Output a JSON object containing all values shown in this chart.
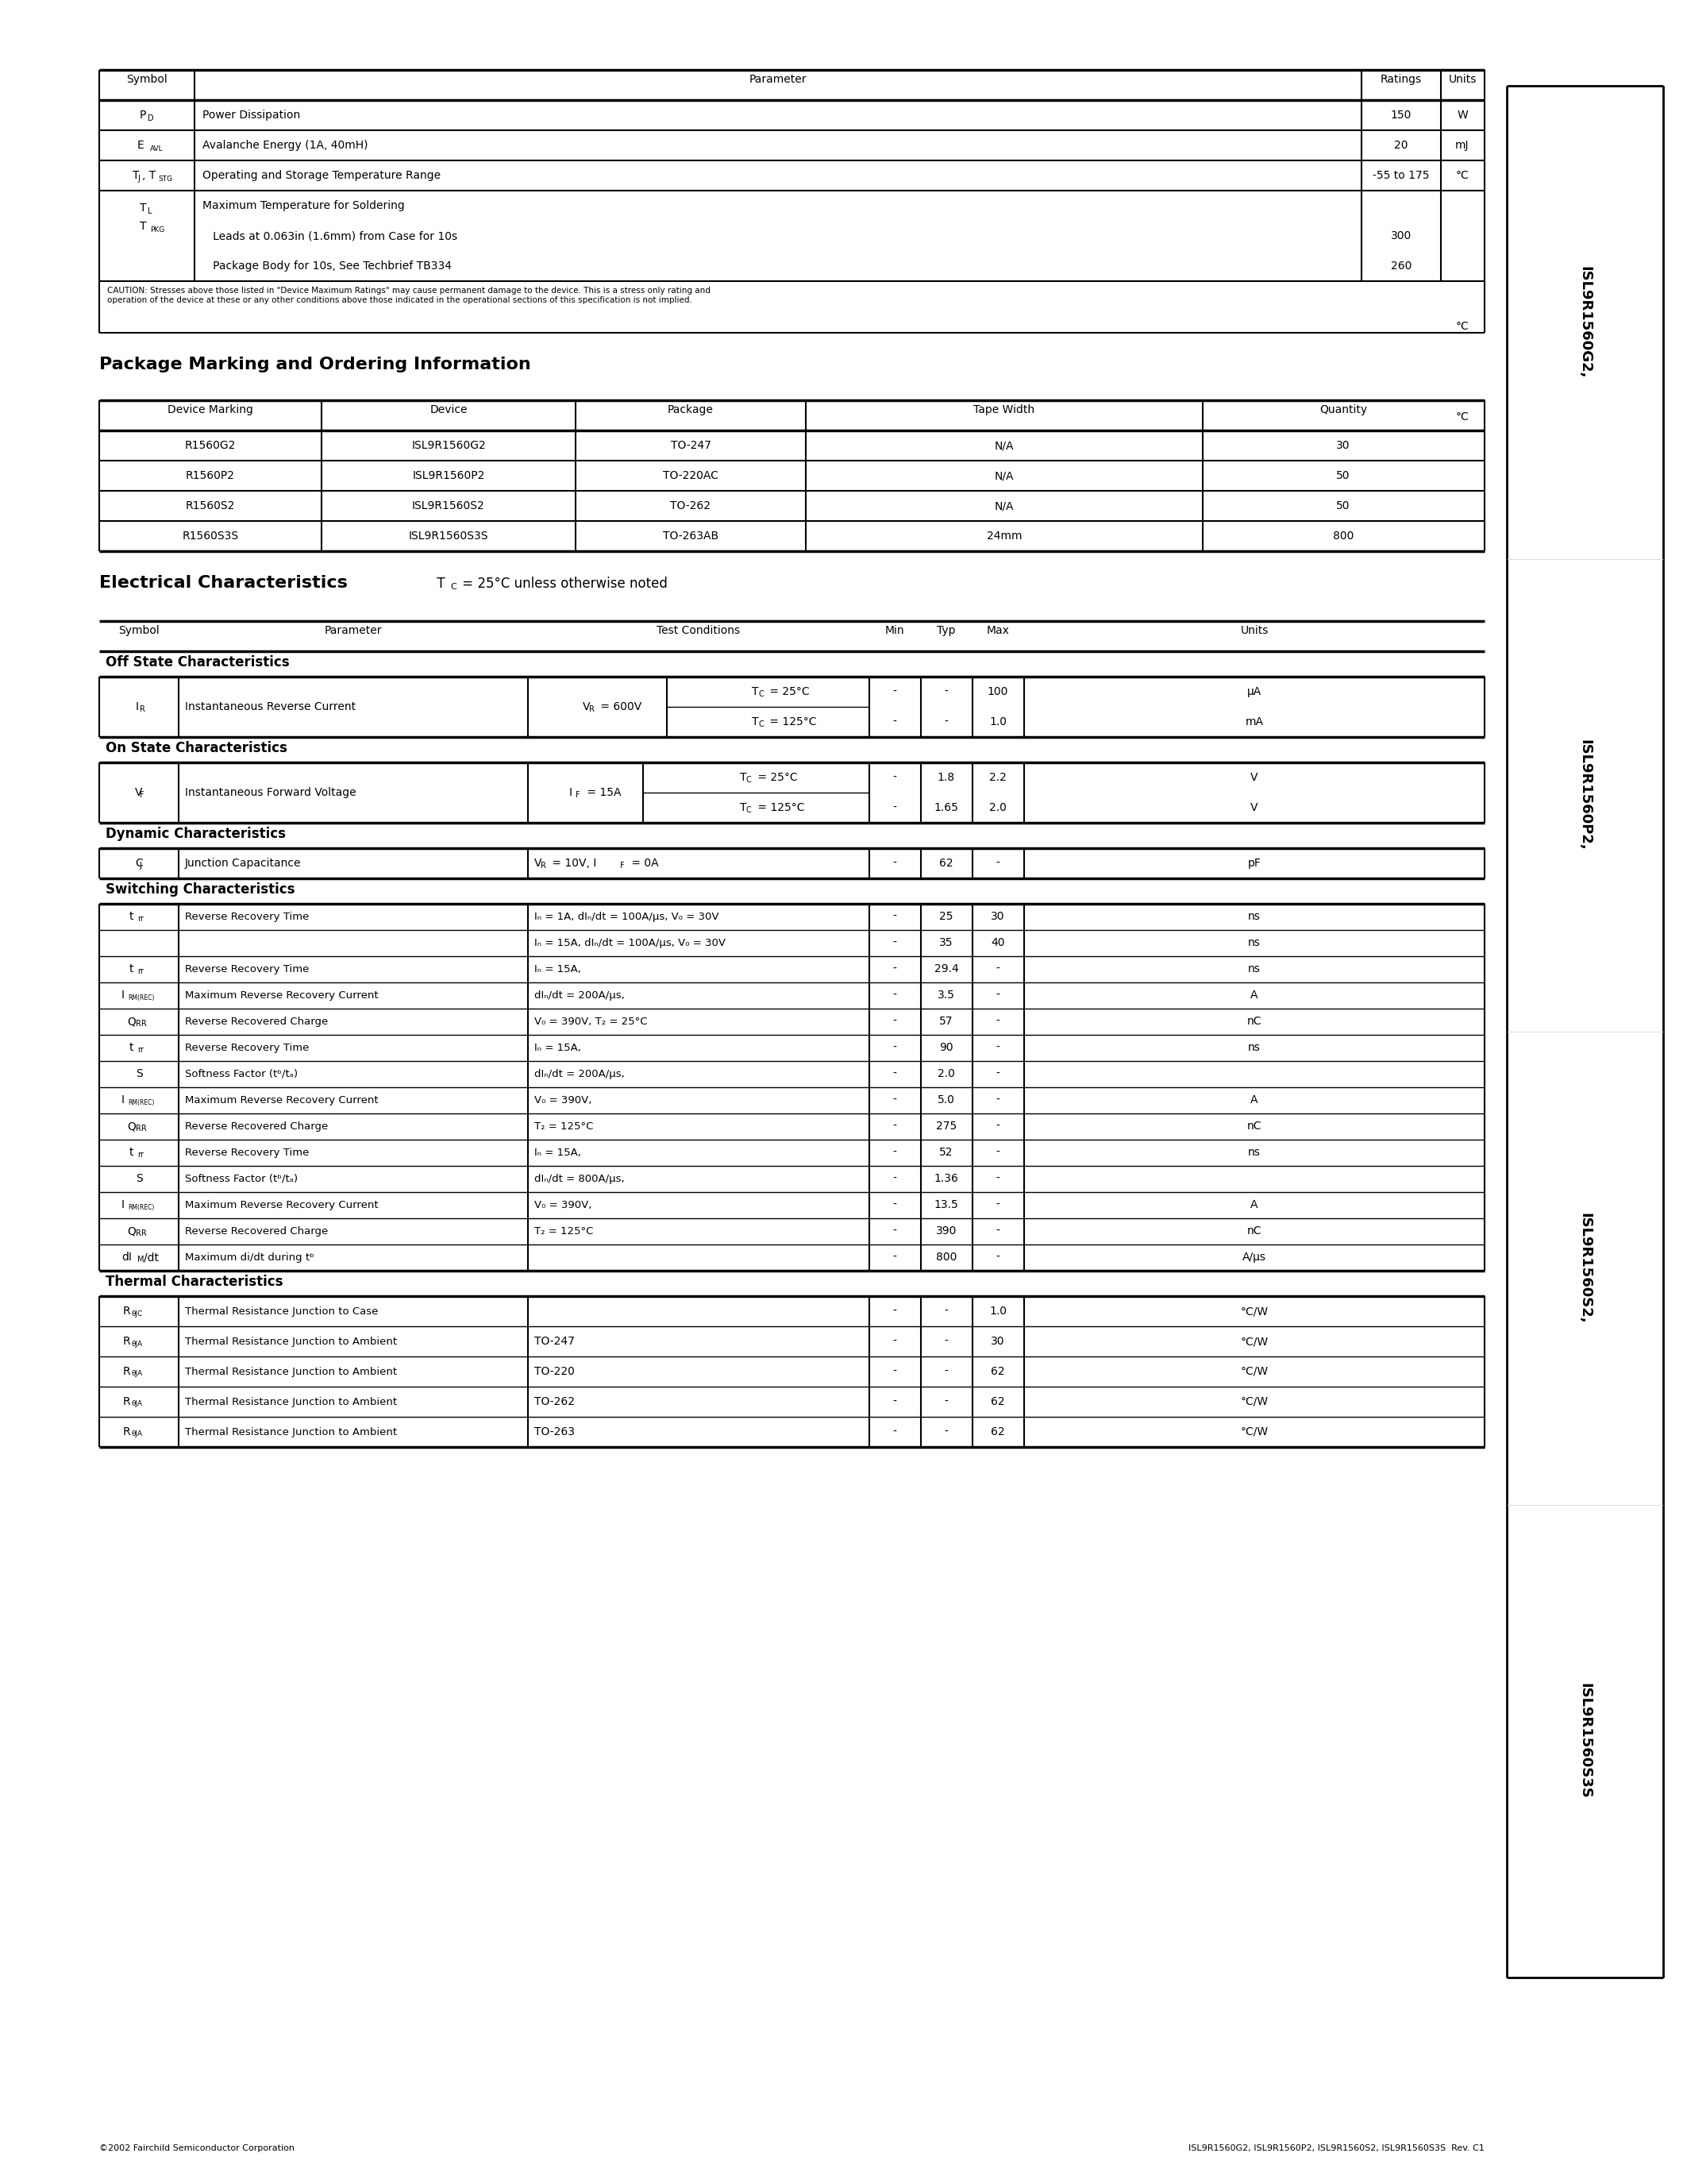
{
  "page_bg": "#ffffff",
  "footer_left": "©2002 Fairchild Semiconductor Corporation",
  "footer_right": "ISL9R1560G2, ISL9R1560P2, ISL9R1560S2, ISL9R1560S3S  Rev. C1",
  "sidebar_lines": [
    "ISL9R1560G2, ISL9R1560P2, ISL9R1560S2, ISL9R1560S3S"
  ]
}
